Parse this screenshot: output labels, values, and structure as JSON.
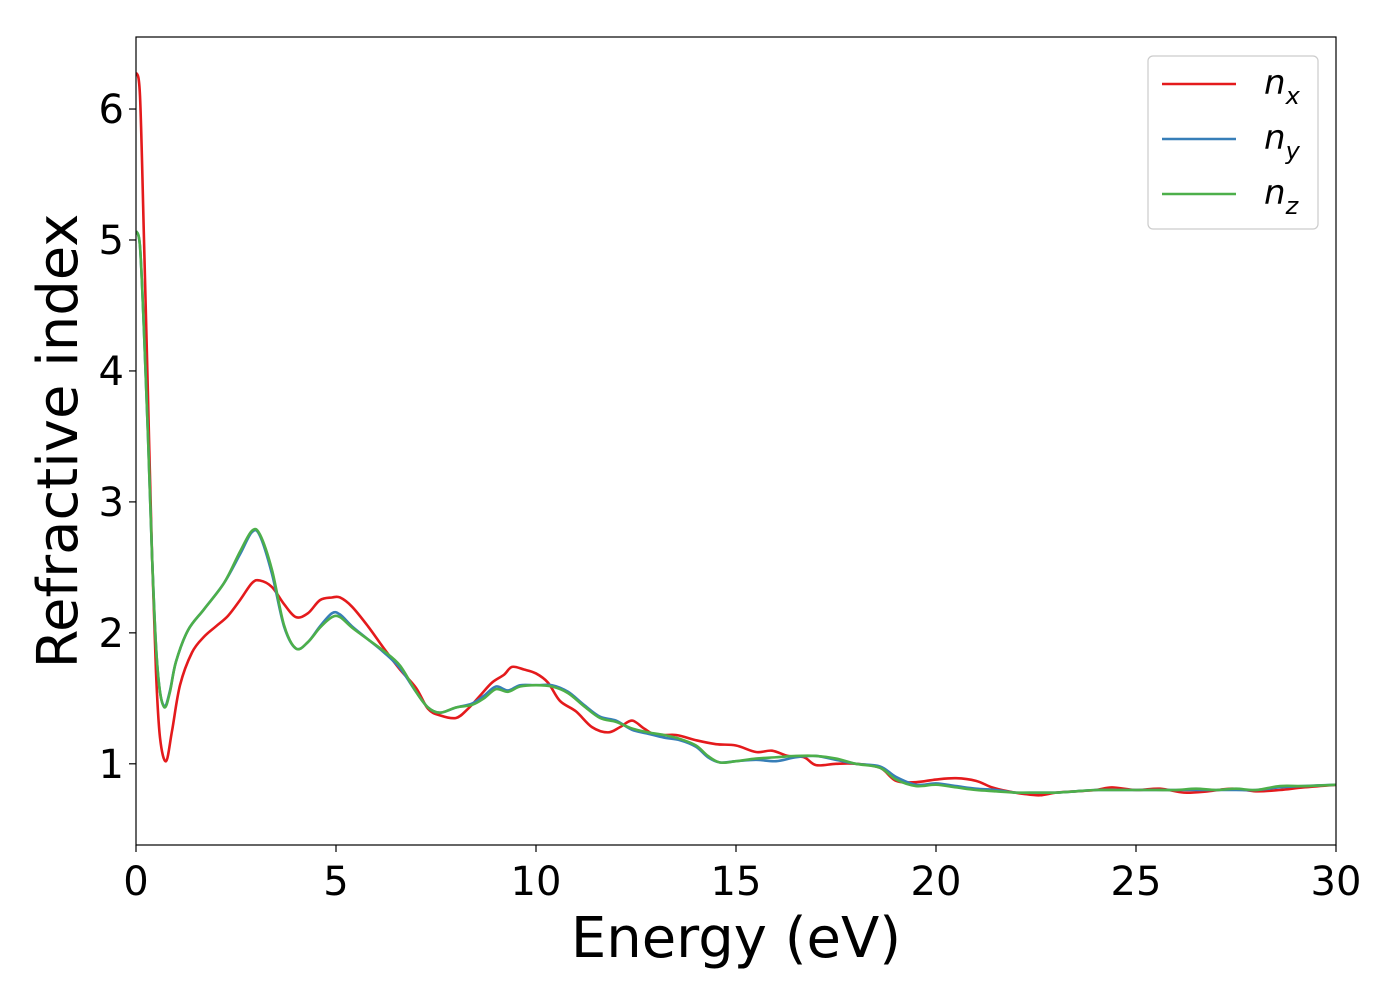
{
  "chart_data": {
    "type": "line",
    "xlabel": "Energy (eV)",
    "ylabel": "Refractive index",
    "xlim": [
      0,
      30
    ],
    "ylim": [
      0.38,
      6.55
    ],
    "xticks": [
      0,
      5,
      10,
      15,
      20,
      25,
      30
    ],
    "yticks": [
      1,
      2,
      3,
      4,
      5,
      6
    ],
    "grid": false,
    "legend_position": "top-right",
    "series": [
      {
        "name": "n",
        "subscript": "x",
        "color": "#e41a1c",
        "points": [
          [
            0,
            6.28
          ],
          [
            0.1,
            6.1
          ],
          [
            0.2,
            5.0
          ],
          [
            0.3,
            3.8
          ],
          [
            0.4,
            2.6
          ],
          [
            0.5,
            1.7
          ],
          [
            0.6,
            1.2
          ],
          [
            0.75,
            1.02
          ],
          [
            0.9,
            1.25
          ],
          [
            1.1,
            1.6
          ],
          [
            1.4,
            1.85
          ],
          [
            1.7,
            1.97
          ],
          [
            2.0,
            2.05
          ],
          [
            2.3,
            2.13
          ],
          [
            2.6,
            2.25
          ],
          [
            2.9,
            2.38
          ],
          [
            3.1,
            2.4
          ],
          [
            3.4,
            2.35
          ],
          [
            3.7,
            2.22
          ],
          [
            4.0,
            2.12
          ],
          [
            4.3,
            2.15
          ],
          [
            4.6,
            2.25
          ],
          [
            4.9,
            2.27
          ],
          [
            5.1,
            2.27
          ],
          [
            5.4,
            2.2
          ],
          [
            5.8,
            2.05
          ],
          [
            6.2,
            1.88
          ],
          [
            6.6,
            1.72
          ],
          [
            7.0,
            1.58
          ],
          [
            7.3,
            1.42
          ],
          [
            7.6,
            1.37
          ],
          [
            8.0,
            1.35
          ],
          [
            8.3,
            1.42
          ],
          [
            8.6,
            1.52
          ],
          [
            8.9,
            1.62
          ],
          [
            9.2,
            1.68
          ],
          [
            9.4,
            1.74
          ],
          [
            9.7,
            1.72
          ],
          [
            10.0,
            1.69
          ],
          [
            10.3,
            1.62
          ],
          [
            10.6,
            1.48
          ],
          [
            11.0,
            1.4
          ],
          [
            11.4,
            1.28
          ],
          [
            11.8,
            1.24
          ],
          [
            12.1,
            1.28
          ],
          [
            12.4,
            1.33
          ],
          [
            12.7,
            1.27
          ],
          [
            13.0,
            1.22
          ],
          [
            13.5,
            1.22
          ],
          [
            14.0,
            1.18
          ],
          [
            14.5,
            1.15
          ],
          [
            15.0,
            1.14
          ],
          [
            15.5,
            1.09
          ],
          [
            15.9,
            1.1
          ],
          [
            16.3,
            1.06
          ],
          [
            16.7,
            1.05
          ],
          [
            17.0,
            0.99
          ],
          [
            17.5,
            1.0
          ],
          [
            18.0,
            1.0
          ],
          [
            18.6,
            0.97
          ],
          [
            19.0,
            0.87
          ],
          [
            19.5,
            0.86
          ],
          [
            20.0,
            0.88
          ],
          [
            20.5,
            0.89
          ],
          [
            21.0,
            0.87
          ],
          [
            21.4,
            0.82
          ],
          [
            21.8,
            0.79
          ],
          [
            22.2,
            0.77
          ],
          [
            22.6,
            0.76
          ],
          [
            23.0,
            0.78
          ],
          [
            23.5,
            0.79
          ],
          [
            24.0,
            0.8
          ],
          [
            24.4,
            0.82
          ],
          [
            25.0,
            0.8
          ],
          [
            25.6,
            0.81
          ],
          [
            26.2,
            0.78
          ],
          [
            26.8,
            0.79
          ],
          [
            27.4,
            0.81
          ],
          [
            28.0,
            0.79
          ],
          [
            28.6,
            0.8
          ],
          [
            29.2,
            0.82
          ],
          [
            30.0,
            0.84
          ]
        ]
      },
      {
        "name": "n",
        "subscript": "y",
        "color": "#377eb8",
        "points": [
          [
            0,
            5.07
          ],
          [
            0.1,
            4.95
          ],
          [
            0.2,
            4.3
          ],
          [
            0.3,
            3.5
          ],
          [
            0.4,
            2.6
          ],
          [
            0.5,
            1.9
          ],
          [
            0.6,
            1.55
          ],
          [
            0.72,
            1.44
          ],
          [
            0.85,
            1.56
          ],
          [
            1.0,
            1.78
          ],
          [
            1.3,
            2.02
          ],
          [
            1.7,
            2.18
          ],
          [
            2.2,
            2.38
          ],
          [
            2.6,
            2.6
          ],
          [
            2.9,
            2.77
          ],
          [
            3.1,
            2.74
          ],
          [
            3.4,
            2.45
          ],
          [
            3.7,
            2.05
          ],
          [
            4.0,
            1.88
          ],
          [
            4.3,
            1.93
          ],
          [
            4.6,
            2.05
          ],
          [
            4.9,
            2.15
          ],
          [
            5.1,
            2.14
          ],
          [
            5.4,
            2.05
          ],
          [
            5.8,
            1.95
          ],
          [
            6.2,
            1.85
          ],
          [
            6.6,
            1.73
          ],
          [
            7.0,
            1.55
          ],
          [
            7.3,
            1.43
          ],
          [
            7.6,
            1.39
          ],
          [
            8.0,
            1.43
          ],
          [
            8.4,
            1.46
          ],
          [
            8.7,
            1.52
          ],
          [
            9.0,
            1.59
          ],
          [
            9.3,
            1.56
          ],
          [
            9.6,
            1.6
          ],
          [
            10.0,
            1.6
          ],
          [
            10.4,
            1.6
          ],
          [
            10.8,
            1.55
          ],
          [
            11.2,
            1.45
          ],
          [
            11.6,
            1.36
          ],
          [
            12.0,
            1.33
          ],
          [
            12.4,
            1.26
          ],
          [
            12.8,
            1.23
          ],
          [
            13.2,
            1.2
          ],
          [
            13.6,
            1.18
          ],
          [
            14.0,
            1.13
          ],
          [
            14.3,
            1.05
          ],
          [
            14.6,
            1.01
          ],
          [
            15.0,
            1.02
          ],
          [
            15.5,
            1.03
          ],
          [
            16.0,
            1.02
          ],
          [
            16.5,
            1.05
          ],
          [
            17.0,
            1.06
          ],
          [
            17.5,
            1.03
          ],
          [
            18.0,
            1.0
          ],
          [
            18.6,
            0.98
          ],
          [
            19.0,
            0.9
          ],
          [
            19.5,
            0.84
          ],
          [
            20.0,
            0.85
          ],
          [
            20.5,
            0.83
          ],
          [
            21.0,
            0.81
          ],
          [
            21.5,
            0.8
          ],
          [
            22.0,
            0.78
          ],
          [
            22.5,
            0.78
          ],
          [
            23.0,
            0.78
          ],
          [
            23.5,
            0.79
          ],
          [
            24.0,
            0.8
          ],
          [
            24.5,
            0.8
          ],
          [
            25.0,
            0.8
          ],
          [
            25.5,
            0.8
          ],
          [
            26.0,
            0.8
          ],
          [
            26.5,
            0.8
          ],
          [
            27.0,
            0.8
          ],
          [
            27.5,
            0.8
          ],
          [
            28.0,
            0.8
          ],
          [
            28.6,
            0.82
          ],
          [
            29.2,
            0.83
          ],
          [
            30.0,
            0.84
          ]
        ]
      },
      {
        "name": "n",
        "subscript": "z",
        "color": "#4daf4a",
        "points": [
          [
            0,
            5.07
          ],
          [
            0.1,
            4.95
          ],
          [
            0.2,
            4.3
          ],
          [
            0.3,
            3.5
          ],
          [
            0.4,
            2.6
          ],
          [
            0.5,
            1.9
          ],
          [
            0.6,
            1.55
          ],
          [
            0.72,
            1.43
          ],
          [
            0.85,
            1.55
          ],
          [
            1.0,
            1.78
          ],
          [
            1.3,
            2.02
          ],
          [
            1.7,
            2.18
          ],
          [
            2.2,
            2.38
          ],
          [
            2.6,
            2.62
          ],
          [
            2.9,
            2.78
          ],
          [
            3.1,
            2.75
          ],
          [
            3.4,
            2.48
          ],
          [
            3.7,
            2.06
          ],
          [
            4.0,
            1.88
          ],
          [
            4.3,
            1.93
          ],
          [
            4.6,
            2.04
          ],
          [
            4.9,
            2.12
          ],
          [
            5.1,
            2.12
          ],
          [
            5.4,
            2.04
          ],
          [
            5.8,
            1.95
          ],
          [
            6.2,
            1.86
          ],
          [
            6.6,
            1.75
          ],
          [
            7.0,
            1.55
          ],
          [
            7.3,
            1.43
          ],
          [
            7.6,
            1.39
          ],
          [
            8.0,
            1.43
          ],
          [
            8.4,
            1.45
          ],
          [
            8.7,
            1.5
          ],
          [
            9.0,
            1.57
          ],
          [
            9.3,
            1.55
          ],
          [
            9.6,
            1.59
          ],
          [
            10.0,
            1.6
          ],
          [
            10.4,
            1.59
          ],
          [
            10.8,
            1.54
          ],
          [
            11.2,
            1.44
          ],
          [
            11.6,
            1.35
          ],
          [
            12.0,
            1.32
          ],
          [
            12.4,
            1.27
          ],
          [
            12.8,
            1.24
          ],
          [
            13.2,
            1.22
          ],
          [
            13.6,
            1.19
          ],
          [
            14.0,
            1.14
          ],
          [
            14.3,
            1.06
          ],
          [
            14.6,
            1.01
          ],
          [
            15.0,
            1.02
          ],
          [
            15.5,
            1.04
          ],
          [
            16.0,
            1.05
          ],
          [
            16.5,
            1.06
          ],
          [
            17.0,
            1.06
          ],
          [
            17.5,
            1.04
          ],
          [
            18.0,
            1.0
          ],
          [
            18.6,
            0.97
          ],
          [
            19.0,
            0.88
          ],
          [
            19.5,
            0.83
          ],
          [
            20.0,
            0.84
          ],
          [
            20.5,
            0.82
          ],
          [
            21.0,
            0.8
          ],
          [
            21.5,
            0.79
          ],
          [
            22.0,
            0.78
          ],
          [
            22.5,
            0.78
          ],
          [
            23.0,
            0.78
          ],
          [
            23.5,
            0.79
          ],
          [
            24.0,
            0.8
          ],
          [
            24.5,
            0.8
          ],
          [
            25.0,
            0.8
          ],
          [
            25.5,
            0.8
          ],
          [
            26.0,
            0.8
          ],
          [
            26.5,
            0.81
          ],
          [
            27.0,
            0.8
          ],
          [
            27.5,
            0.81
          ],
          [
            28.0,
            0.8
          ],
          [
            28.6,
            0.83
          ],
          [
            29.2,
            0.83
          ],
          [
            30.0,
            0.84
          ]
        ]
      }
    ]
  }
}
